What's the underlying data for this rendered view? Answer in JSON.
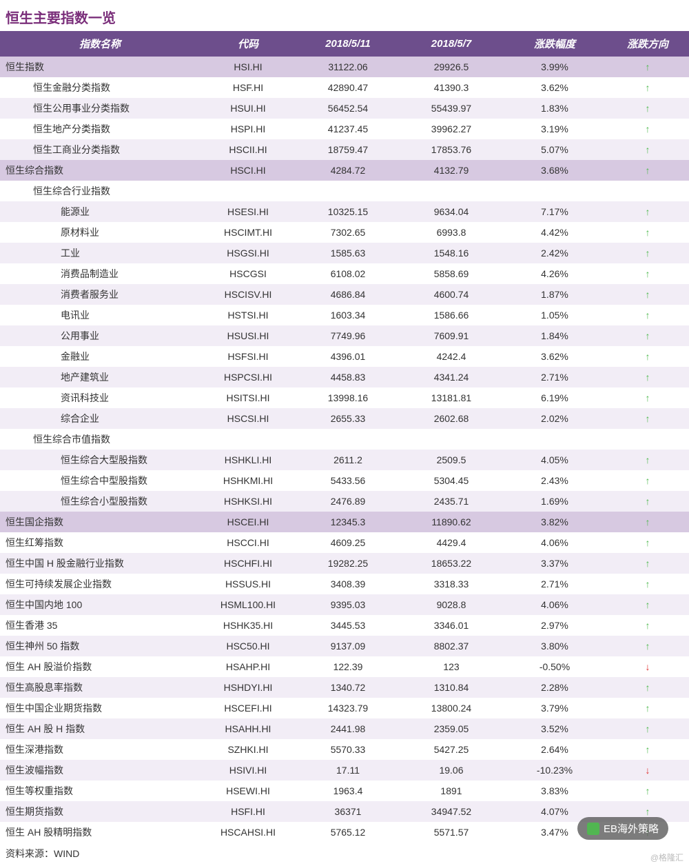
{
  "title": "恒生主要指数一览",
  "columns": [
    "指数名称",
    "代码",
    "2018/5/11",
    "2018/5/7",
    "涨跌幅度",
    "涨跌方向"
  ],
  "source": "资料来源：WIND",
  "badge": "EB海外策略",
  "watermark": "@格隆汇",
  "styles": {
    "header_bg": "#6d4e8c",
    "header_fg": "#ffffff",
    "title_color": "#7a2e7a",
    "shade_dark": "#d7c9e1",
    "shade_light": "#f2edf6",
    "shade_white": "#ffffff",
    "up_color": "#4fb94f",
    "down_color": "#e03030"
  },
  "rows": [
    {
      "name": "恒生指数",
      "code": "HSI.HI",
      "d1": "31122.06",
      "d2": "29926.5",
      "chg": "3.99%",
      "dir": "up",
      "indent": 0,
      "shade": "dark"
    },
    {
      "name": "恒生金融分类指数",
      "code": "HSF.HI",
      "d1": "42890.47",
      "d2": "41390.3",
      "chg": "3.62%",
      "dir": "up",
      "indent": 1,
      "shade": "white"
    },
    {
      "name": "恒生公用事业分类指数",
      "code": "HSUI.HI",
      "d1": "56452.54",
      "d2": "55439.97",
      "chg": "1.83%",
      "dir": "up",
      "indent": 1,
      "shade": "light"
    },
    {
      "name": "恒生地产分类指数",
      "code": "HSPI.HI",
      "d1": "41237.45",
      "d2": "39962.27",
      "chg": "3.19%",
      "dir": "up",
      "indent": 1,
      "shade": "white"
    },
    {
      "name": "恒生工商业分类指数",
      "code": "HSCII.HI",
      "d1": "18759.47",
      "d2": "17853.76",
      "chg": "5.07%",
      "dir": "up",
      "indent": 1,
      "shade": "light"
    },
    {
      "name": "恒生综合指数",
      "code": "HSCI.HI",
      "d1": "4284.72",
      "d2": "4132.79",
      "chg": "3.68%",
      "dir": "up",
      "indent": 0,
      "shade": "dark"
    },
    {
      "name": "恒生综合行业指数",
      "code": "",
      "d1": "",
      "d2": "",
      "chg": "",
      "dir": "",
      "indent": 1,
      "shade": "white"
    },
    {
      "name": "能源业",
      "code": "HSESI.HI",
      "d1": "10325.15",
      "d2": "9634.04",
      "chg": "7.17%",
      "dir": "up",
      "indent": 2,
      "shade": "light"
    },
    {
      "name": "原材料业",
      "code": "HSCIMT.HI",
      "d1": "7302.65",
      "d2": "6993.8",
      "chg": "4.42%",
      "dir": "up",
      "indent": 2,
      "shade": "white"
    },
    {
      "name": "工业",
      "code": "HSGSI.HI",
      "d1": "1585.63",
      "d2": "1548.16",
      "chg": "2.42%",
      "dir": "up",
      "indent": 2,
      "shade": "light"
    },
    {
      "name": "消费品制造业",
      "code": "HSCGSI",
      "d1": "6108.02",
      "d2": "5858.69",
      "chg": "4.26%",
      "dir": "up",
      "indent": 2,
      "shade": "white"
    },
    {
      "name": "消费者服务业",
      "code": "HSCISV.HI",
      "d1": "4686.84",
      "d2": "4600.74",
      "chg": "1.87%",
      "dir": "up",
      "indent": 2,
      "shade": "light"
    },
    {
      "name": "电讯业",
      "code": "HSTSI.HI",
      "d1": "1603.34",
      "d2": "1586.66",
      "chg": "1.05%",
      "dir": "up",
      "indent": 2,
      "shade": "white"
    },
    {
      "name": "公用事业",
      "code": "HSUSI.HI",
      "d1": "7749.96",
      "d2": "7609.91",
      "chg": "1.84%",
      "dir": "up",
      "indent": 2,
      "shade": "light"
    },
    {
      "name": "金融业",
      "code": "HSFSI.HI",
      "d1": "4396.01",
      "d2": "4242.4",
      "chg": "3.62%",
      "dir": "up",
      "indent": 2,
      "shade": "white"
    },
    {
      "name": "地产建筑业",
      "code": "HSPCSI.HI",
      "d1": "4458.83",
      "d2": "4341.24",
      "chg": "2.71%",
      "dir": "up",
      "indent": 2,
      "shade": "light"
    },
    {
      "name": "资讯科技业",
      "code": "HSITSI.HI",
      "d1": "13998.16",
      "d2": "13181.81",
      "chg": "6.19%",
      "dir": "up",
      "indent": 2,
      "shade": "white"
    },
    {
      "name": "综合企业",
      "code": "HSCSI.HI",
      "d1": "2655.33",
      "d2": "2602.68",
      "chg": "2.02%",
      "dir": "up",
      "indent": 2,
      "shade": "light"
    },
    {
      "name": "恒生综合市值指数",
      "code": "",
      "d1": "",
      "d2": "",
      "chg": "",
      "dir": "",
      "indent": 1,
      "shade": "white"
    },
    {
      "name": "恒生综合大型股指数",
      "code": "HSHKLI.HI",
      "d1": "2611.2",
      "d2": "2509.5",
      "chg": "4.05%",
      "dir": "up",
      "indent": 2,
      "shade": "light"
    },
    {
      "name": "恒生综合中型股指数",
      "code": "HSHKMI.HI",
      "d1": "5433.56",
      "d2": "5304.45",
      "chg": "2.43%",
      "dir": "up",
      "indent": 2,
      "shade": "white"
    },
    {
      "name": "恒生综合小型股指数",
      "code": "HSHKSI.HI",
      "d1": "2476.89",
      "d2": "2435.71",
      "chg": "1.69%",
      "dir": "up",
      "indent": 2,
      "shade": "light"
    },
    {
      "name": "恒生国企指数",
      "code": "HSCEI.HI",
      "d1": "12345.3",
      "d2": "11890.62",
      "chg": "3.82%",
      "dir": "up",
      "indent": 0,
      "shade": "dark"
    },
    {
      "name": "恒生红筹指数",
      "code": "HSCCI.HI",
      "d1": "4609.25",
      "d2": "4429.4",
      "chg": "4.06%",
      "dir": "up",
      "indent": 0,
      "shade": "white"
    },
    {
      "name": "恒生中国 H 股金融行业指数",
      "code": "HSCHFI.HI",
      "d1": "19282.25",
      "d2": "18653.22",
      "chg": "3.37%",
      "dir": "up",
      "indent": 0,
      "shade": "light"
    },
    {
      "name": "恒生可持续发展企业指数",
      "code": "HSSUS.HI",
      "d1": "3408.39",
      "d2": "3318.33",
      "chg": "2.71%",
      "dir": "up",
      "indent": 0,
      "shade": "white"
    },
    {
      "name": "恒生中国内地 100",
      "code": "HSML100.HI",
      "d1": "9395.03",
      "d2": "9028.8",
      "chg": "4.06%",
      "dir": "up",
      "indent": 0,
      "shade": "light"
    },
    {
      "name": "恒生香港 35",
      "code": "HSHK35.HI",
      "d1": "3445.53",
      "d2": "3346.01",
      "chg": "2.97%",
      "dir": "up",
      "indent": 0,
      "shade": "white"
    },
    {
      "name": "恒生神州 50 指数",
      "code": "HSC50.HI",
      "d1": "9137.09",
      "d2": "8802.37",
      "chg": "3.80%",
      "dir": "up",
      "indent": 0,
      "shade": "light"
    },
    {
      "name": "恒生 AH 股溢价指数",
      "code": "HSAHP.HI",
      "d1": "122.39",
      "d2": "123",
      "chg": "-0.50%",
      "dir": "down",
      "indent": 0,
      "shade": "white"
    },
    {
      "name": "恒生高股息率指数",
      "code": "HSHDYI.HI",
      "d1": "1340.72",
      "d2": "1310.84",
      "chg": "2.28%",
      "dir": "up",
      "indent": 0,
      "shade": "light"
    },
    {
      "name": "恒生中国企业期货指数",
      "code": "HSCEFI.HI",
      "d1": "14323.79",
      "d2": "13800.24",
      "chg": "3.79%",
      "dir": "up",
      "indent": 0,
      "shade": "white"
    },
    {
      "name": "恒生 AH 股 H 指数",
      "code": "HSAHH.HI",
      "d1": "2441.98",
      "d2": "2359.05",
      "chg": "3.52%",
      "dir": "up",
      "indent": 0,
      "shade": "light"
    },
    {
      "name": "恒生深港指数",
      "code": "SZHKI.HI",
      "d1": "5570.33",
      "d2": "5427.25",
      "chg": "2.64%",
      "dir": "up",
      "indent": 0,
      "shade": "white"
    },
    {
      "name": "恒生波幅指数",
      "code": "HSIVI.HI",
      "d1": "17.11",
      "d2": "19.06",
      "chg": "-10.23%",
      "dir": "down",
      "indent": 0,
      "shade": "light"
    },
    {
      "name": "恒生等权重指数",
      "code": "HSEWI.HI",
      "d1": "1963.4",
      "d2": "1891",
      "chg": "3.83%",
      "dir": "up",
      "indent": 0,
      "shade": "white"
    },
    {
      "name": "恒生期货指数",
      "code": "HSFI.HI",
      "d1": "36371",
      "d2": "34947.52",
      "chg": "4.07%",
      "dir": "up",
      "indent": 0,
      "shade": "light"
    },
    {
      "name": "恒生 AH 股精明指数",
      "code": "HSCAHSI.HI",
      "d1": "5765.12",
      "d2": "5571.57",
      "chg": "3.47%",
      "dir": "up",
      "indent": 0,
      "shade": "white"
    }
  ]
}
